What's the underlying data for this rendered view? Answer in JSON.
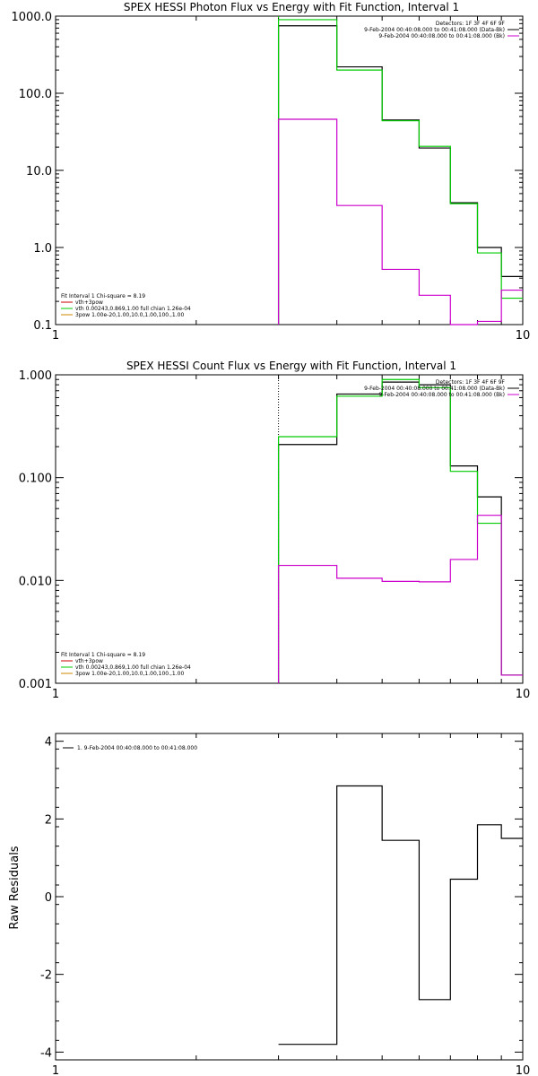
{
  "chart_data": [
    {
      "type": "line",
      "title": "SPEX HESSI Photon Flux vs Energy with Fit Function, Interval 1",
      "xlabel": "",
      "ylabel": "",
      "xscale": "log",
      "yscale": "log",
      "xlim": [
        1,
        10
      ],
      "ylim": [
        0.1,
        1000
      ],
      "xticks": [
        "1",
        "10"
      ],
      "yticks": [
        {
          "value": 0.1,
          "label": "0.1"
        },
        {
          "value": 1,
          "label": "1.0"
        },
        {
          "value": 10,
          "label": "10.0"
        },
        {
          "value": 100,
          "label": "100.0"
        },
        {
          "value": 1000,
          "label": "1000.0"
        }
      ],
      "vline": {
        "x": 3,
        "color": "#00cc00"
      },
      "legend_top_right": [
        {
          "text": "Detectors: 1F 3F 4F 6F 9F",
          "color": null
        },
        {
          "text": "9-Feb-2004 00:40:08.000 to 00:41:08.000 (Data-Bk)",
          "color": "#000000"
        },
        {
          "text": "9-Feb-2004 00:40:08.000 to 00:41:08.000 (Bk)",
          "color": "#cc00cc"
        }
      ],
      "legend_bottom_left": [
        {
          "text": "Fit Interval 1   Chi-square = 8.19",
          "color": null
        },
        {
          "text": "vth+3pow",
          "color": "#cc0000"
        },
        {
          "text": "vth 0.00243,0.869,1.00  full chian 1.26e-04",
          "color": "#00cc00"
        },
        {
          "text": "3pow 1.00e-20,1.00,10.0,1.00,100.,1.00",
          "color": "#cc8800"
        }
      ],
      "edges": [
        3,
        3.5,
        4,
        4.5,
        5,
        5.5,
        6,
        6.5,
        7,
        7.5,
        8,
        8.5,
        9
      ],
      "series": [
        {
          "role": "data-bk",
          "color": "#000000",
          "values": [
            750,
            750,
            220,
            220,
            45,
            45,
            19.5,
            19.5,
            3.8,
            3.8,
            1.0,
            1.0,
            0.42
          ]
        },
        {
          "role": "fit",
          "color": "#00cc00",
          "values": [
            900,
            900,
            200,
            200,
            44,
            44,
            20.5,
            20.5,
            3.7,
            3.7,
            0.85,
            0.85,
            0.22
          ]
        },
        {
          "role": "background",
          "color": "#cc00cc",
          "values": [
            46,
            46,
            3.5,
            3.5,
            0.52,
            0.52,
            0.24,
            0.24,
            0.095,
            0.095,
            0.11,
            0.11,
            0.28
          ]
        }
      ]
    },
    {
      "type": "line",
      "title": "SPEX HESSI Count Flux vs Energy with Fit Function, Interval 1",
      "xlabel": "",
      "ylabel": "",
      "xscale": "log",
      "yscale": "log",
      "xlim": [
        1,
        10
      ],
      "ylim": [
        0.001,
        1
      ],
      "xticks": [
        "1",
        "10"
      ],
      "yticks": [
        {
          "value": 0.001,
          "label": "0.001"
        },
        {
          "value": 0.01,
          "label": "0.010"
        },
        {
          "value": 0.1,
          "label": "0.100"
        },
        {
          "value": 1,
          "label": "1.000"
        }
      ],
      "vline": {
        "x": 3,
        "color": "#000000",
        "dotted": true
      },
      "legend_top_right": [
        {
          "text": "Detectors: 1F 3F 4F 6F 9F",
          "color": null
        },
        {
          "text": "9-Feb-2004 00:40:08.000 to 00:41:08.000 (Data-Bk)",
          "color": "#000000"
        },
        {
          "text": "9-Feb-2004 00:40:08.000 to 00:41:08.000 (Bk)",
          "color": "#cc00cc"
        }
      ],
      "legend_bottom_left": [
        {
          "text": "Fit Interval 1   Chi-square = 8.19",
          "color": null
        },
        {
          "text": "vth+3pow",
          "color": "#cc0000"
        },
        {
          "text": "vth 0.00243,0.869,1.00  full chian 1.26e-04",
          "color": "#00cc00"
        },
        {
          "text": "3pow 1.00e-20,1.00,10.0,1.00,100.,1.00",
          "color": "#cc8800"
        }
      ],
      "edges": [
        3,
        3.5,
        4,
        4.5,
        5,
        5.5,
        6,
        6.5,
        7,
        7.5,
        8,
        8.5,
        9
      ],
      "series": [
        {
          "role": "data-bk",
          "color": "#000000",
          "values": [
            0.21,
            0.21,
            0.65,
            0.65,
            0.85,
            0.85,
            0.8,
            0.8,
            0.13,
            0.13,
            0.065,
            0.065,
            0.0012
          ]
        },
        {
          "role": "fit",
          "color": "#00cc00",
          "values": [
            0.25,
            0.25,
            0.62,
            0.62,
            0.9,
            0.9,
            0.75,
            0.75,
            0.115,
            0.115,
            0.036,
            0.036,
            0.0012
          ]
        },
        {
          "role": "background",
          "color": "#cc00cc",
          "values": [
            0.014,
            0.014,
            0.0105,
            0.0105,
            0.0098,
            0.0098,
            0.0097,
            0.0097,
            0.016,
            0.016,
            0.043,
            0.043,
            0.0012
          ]
        }
      ]
    },
    {
      "type": "line",
      "title": "",
      "xlabel": "",
      "ylabel": "Raw Residuals",
      "xscale": "log",
      "yscale": "linear",
      "xlim": [
        1,
        10
      ],
      "ylim": [
        -4.2,
        4.2
      ],
      "xticks": [
        "1",
        "10"
      ],
      "yticks": [
        {
          "value": -4,
          "label": "-4"
        },
        {
          "value": -2,
          "label": "-2"
        },
        {
          "value": 0,
          "label": "0"
        },
        {
          "value": 2,
          "label": "2"
        },
        {
          "value": 4,
          "label": "4"
        }
      ],
      "legend_top_left": [
        {
          "text": "1.  9-Feb-2004 00:40:08.000 to 00:41:08.000",
          "color": "#000000"
        }
      ],
      "edges": [
        3,
        4,
        5,
        6,
        7,
        8,
        9,
        10
      ],
      "series": [
        {
          "role": "residuals",
          "color": "#000000",
          "values": [
            -3.8,
            2.85,
            1.45,
            -2.65,
            0.45,
            1.85,
            1.5
          ]
        }
      ]
    }
  ]
}
